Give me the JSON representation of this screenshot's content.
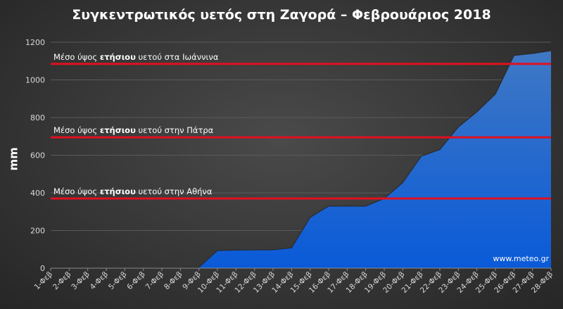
{
  "chart_data": {
    "type": "area",
    "title": "Συγκεντρωτικός υετός στη Ζαγορά – Φεβρουάριος 2018",
    "ylabel": "mm",
    "xlabel": "",
    "ylim": [
      0,
      1200
    ],
    "yticks": [
      0,
      200,
      400,
      600,
      800,
      1000,
      1200
    ],
    "grid": true,
    "categories": [
      "1-Φεβ",
      "2-Φεβ",
      "3-Φεβ",
      "4-Φεβ",
      "5-Φεβ",
      "6-Φεβ",
      "7-Φεβ",
      "8-Φεβ",
      "9-Φεβ",
      "10-Φεβ",
      "11-Φεβ",
      "12-Φεβ",
      "13-Φεβ",
      "14-Φεβ",
      "15-Φεβ",
      "16-Φεβ",
      "17-Φεβ",
      "18-Φεβ",
      "19-Φεβ",
      "20-Φεβ",
      "21-Φεβ",
      "22-Φεβ",
      "23-Φεβ",
      "24-Φεβ",
      "25-Φεβ",
      "26-Φεβ",
      "27-Φεβ",
      "28-Φεβ"
    ],
    "values": [
      0,
      0,
      0,
      0,
      0,
      0,
      0,
      2,
      4,
      94,
      96,
      97,
      98,
      108,
      270,
      330,
      330,
      330,
      370,
      455,
      595,
      630,
      750,
      830,
      925,
      1130,
      1140,
      1155
    ],
    "reference_lines": [
      {
        "value": 1085,
        "label_pre": "Μέσο ύψος ",
        "label_bold": "ετήσιου",
        "label_post": " υετού στα Ιωάννινα"
      },
      {
        "value": 695,
        "label_pre": "Μέσο ύψος ",
        "label_bold": "ετήσιου",
        "label_post": " υετού στην Πάτρα"
      },
      {
        "value": 370,
        "label_pre": "Μέσο ύψος ",
        "label_bold": "ετήσιου",
        "label_post": " υετού στην Αθήνα"
      }
    ],
    "watermark": "www.meteo.gr",
    "colors": {
      "area_top": "#3f78c4",
      "area_bottom": "#0a5ad8",
      "reference": "#e01020",
      "grid": "#5a5a5a"
    }
  }
}
